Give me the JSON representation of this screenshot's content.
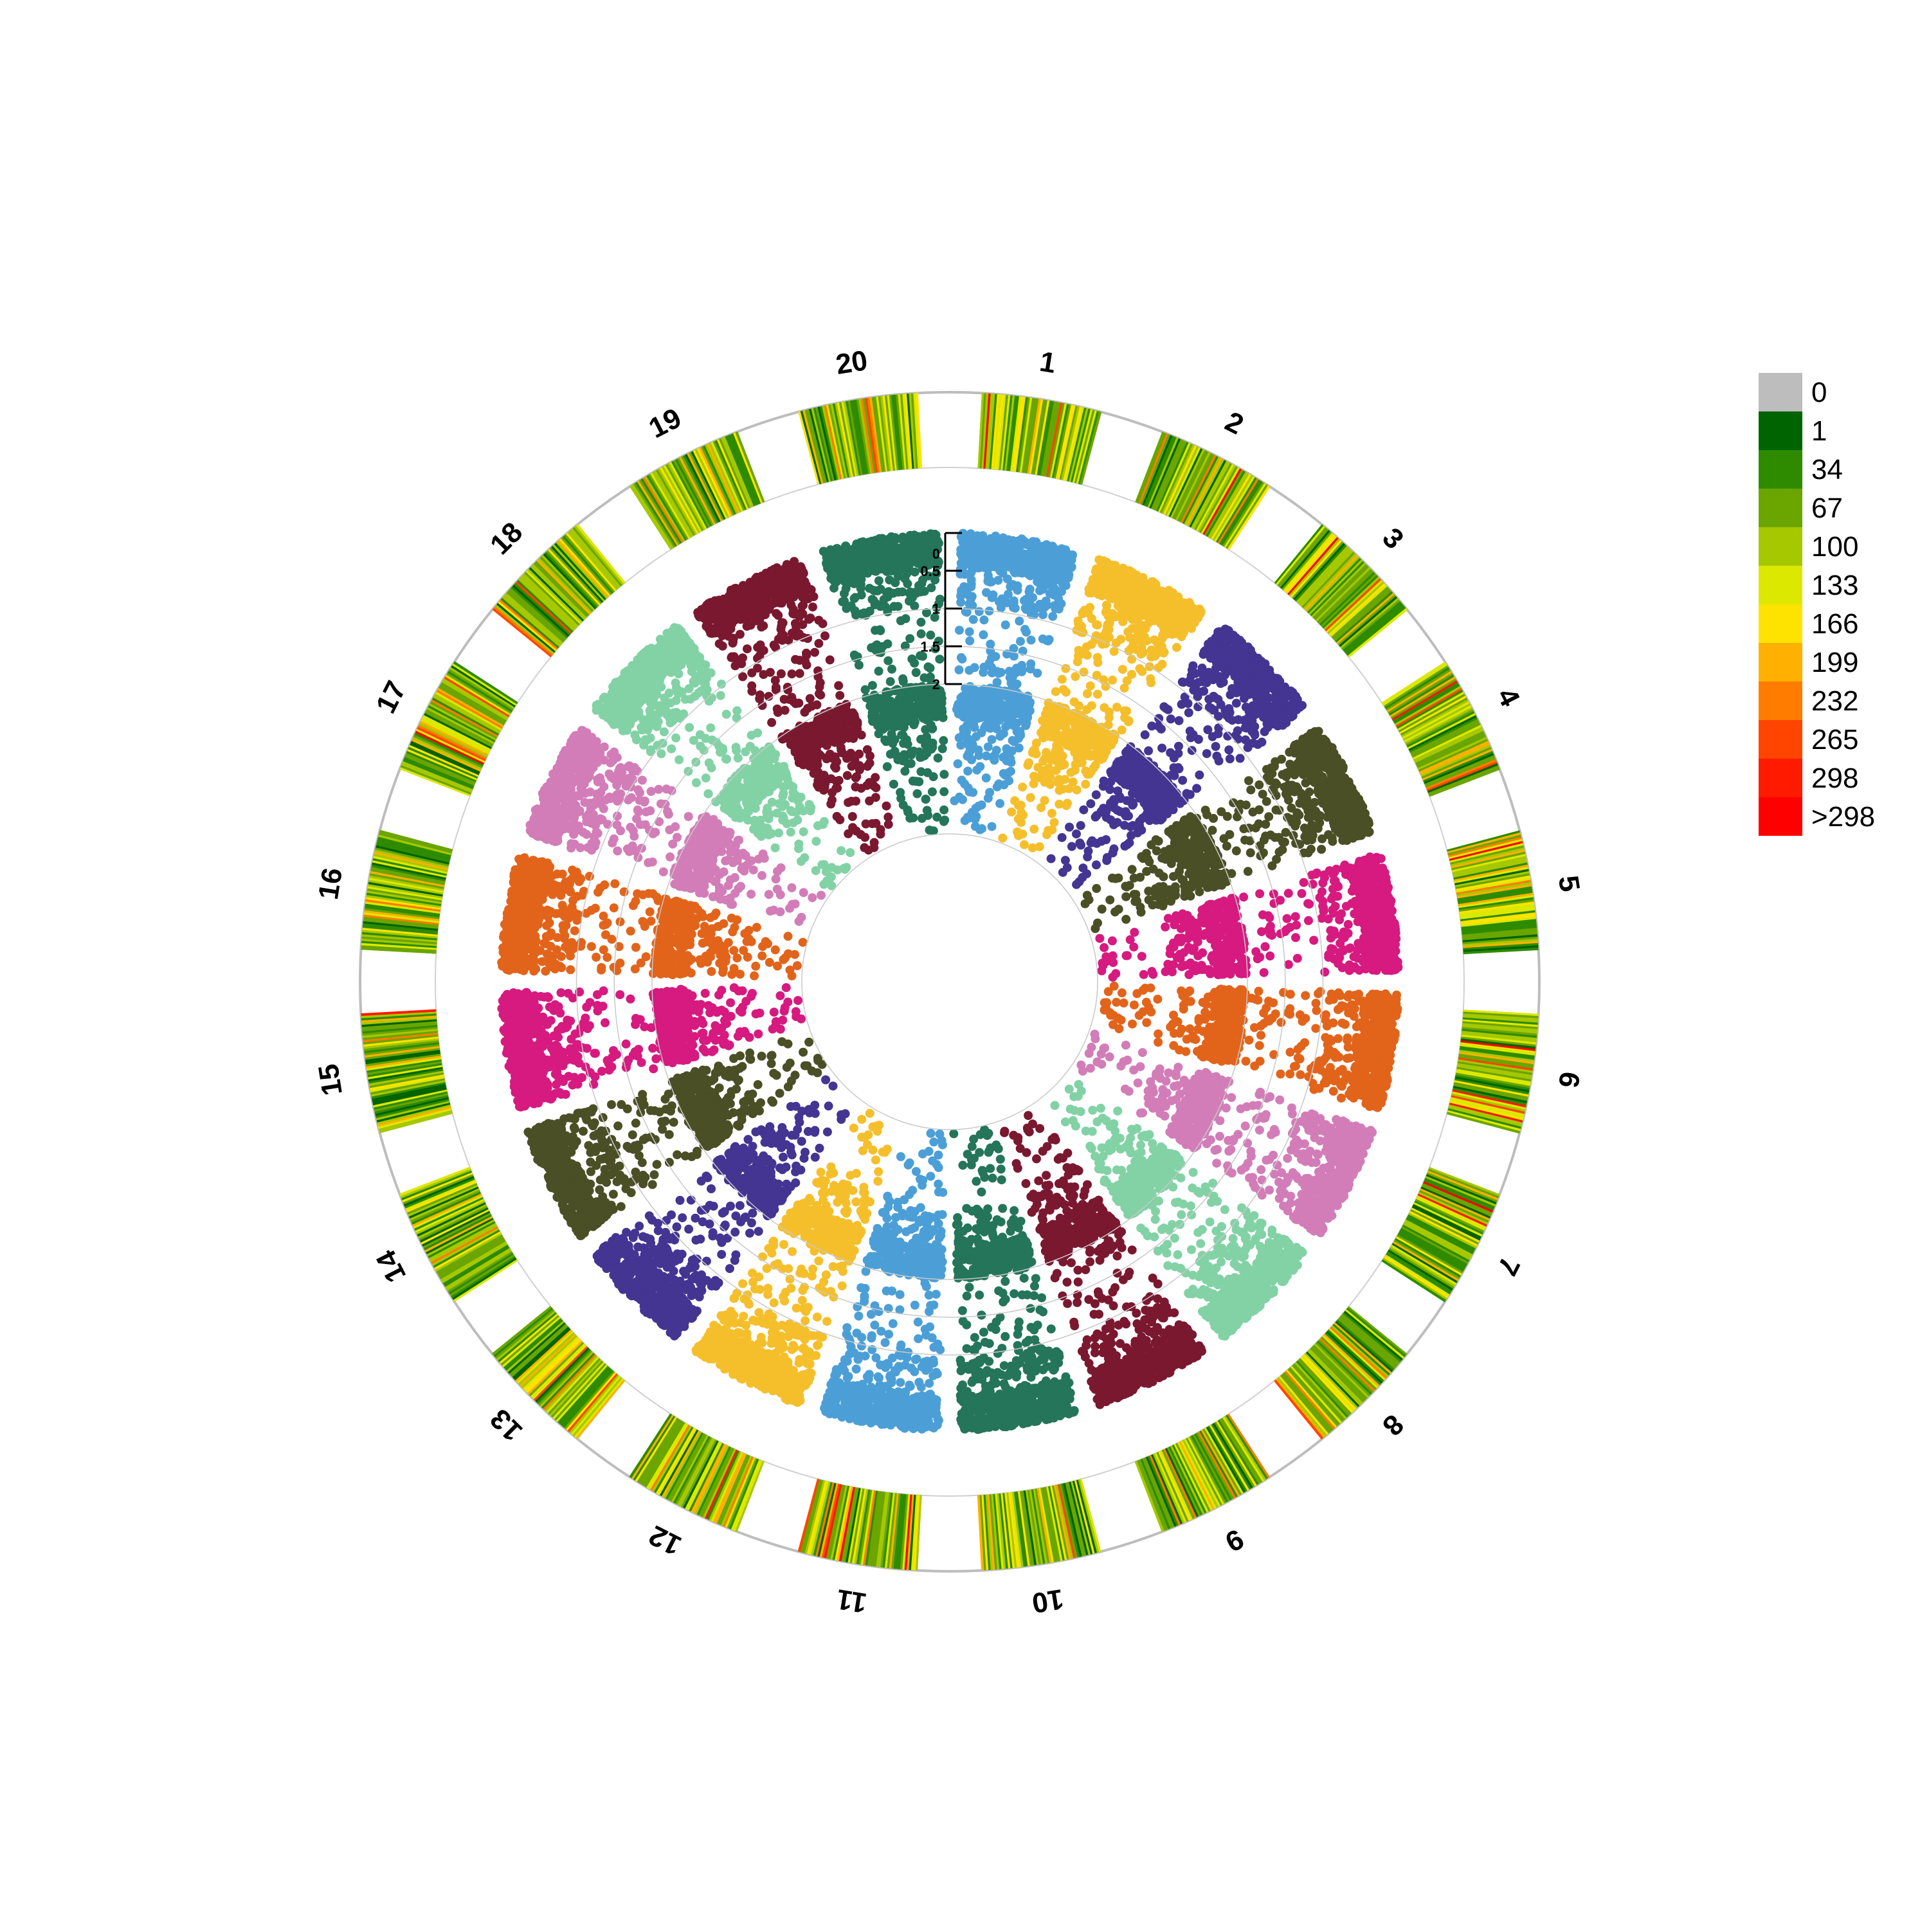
{
  "chart_data": {
    "type": "scatter",
    "variant": "circular-manhattan",
    "chromosomes": [
      "1",
      "2",
      "3",
      "4",
      "5",
      "6",
      "7",
      "8",
      "9",
      "10",
      "11",
      "12",
      "13",
      "14",
      "15",
      "16",
      "17",
      "18",
      "19",
      "20"
    ],
    "series_colors": [
      "#4c9fd6",
      "#f5bf2c",
      "#443592",
      "#4a4f26",
      "#d61a7f",
      "#e2641b",
      "#d27db8",
      "#82d2a6",
      "#7a1830",
      "#247559"
    ],
    "tracks": [
      {
        "name": "",
        "order": "outer",
        "kind": "density-heatmap"
      },
      {
        "name": "",
        "order": "middle",
        "kind": "scatter",
        "ylim": [
          2,
          0
        ]
      },
      {
        "name": "",
        "order": "inner",
        "kind": "scatter",
        "ylim": [
          2,
          0
        ]
      }
    ],
    "radial_axis": {
      "ticks": [
        "0",
        "0.5",
        "1",
        "1.5",
        "2"
      ],
      "values": [
        0,
        0.5,
        1,
        1.5,
        2
      ]
    },
    "inner_reference_circles": [
      1,
      1.5,
      2
    ],
    "legend": {
      "position": "right",
      "entries": [
        {
          "label": "0",
          "color": "#bdbdbd"
        },
        {
          "label": "1",
          "color": "#006400"
        },
        {
          "label": "34",
          "color": "#2e8b00"
        },
        {
          "label": "67",
          "color": "#6aa500"
        },
        {
          "label": "100",
          "color": "#a6c800"
        },
        {
          "label": "133",
          "color": "#dde800"
        },
        {
          "label": "166",
          "color": "#ffe300"
        },
        {
          "label": "199",
          "color": "#ffb000"
        },
        {
          "label": "232",
          "color": "#ff7c00"
        },
        {
          "label": "265",
          "color": "#ff4500"
        },
        {
          "label": "298",
          "color": "#ff1a00"
        },
        {
          "label": ">298",
          "color": "#ff0000"
        }
      ]
    },
    "xlabel": "",
    "ylabel": "",
    "title": ""
  }
}
